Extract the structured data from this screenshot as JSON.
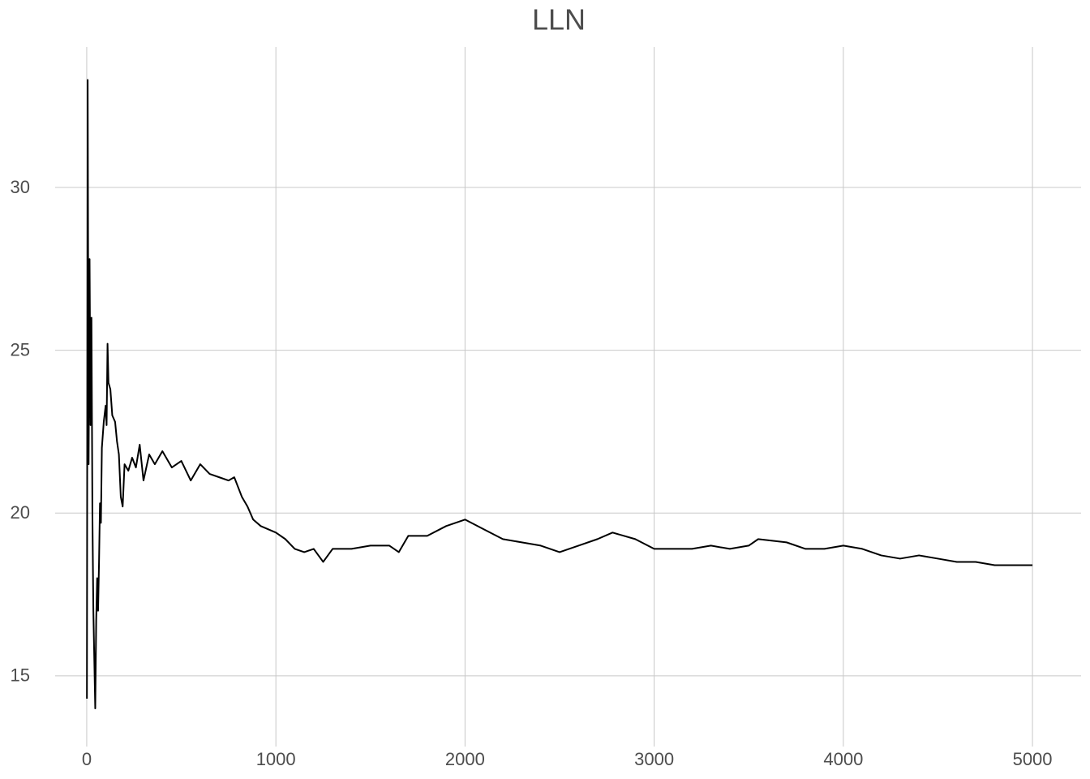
{
  "chart_data": {
    "type": "line",
    "title": "LLN",
    "x": [
      1,
      5,
      10,
      15,
      20,
      25,
      30,
      35,
      40,
      45,
      50,
      55,
      60,
      65,
      70,
      75,
      80,
      90,
      100,
      105,
      110,
      115,
      125,
      135,
      150,
      160,
      170,
      180,
      190,
      200,
      220,
      240,
      260,
      280,
      300,
      330,
      360,
      400,
      450,
      500,
      550,
      600,
      650,
      700,
      750,
      780,
      820,
      850,
      880,
      920,
      960,
      1000,
      1050,
      1100,
      1150,
      1200,
      1250,
      1300,
      1400,
      1500,
      1600,
      1650,
      1700,
      1800,
      1900,
      2000,
      2100,
      2200,
      2300,
      2400,
      2500,
      2600,
      2700,
      2780,
      2900,
      3000,
      3100,
      3200,
      3300,
      3400,
      3500,
      3550,
      3700,
      3800,
      3900,
      4000,
      4100,
      4200,
      4300,
      4400,
      4500,
      4600,
      4700,
      4800,
      4900,
      5000
    ],
    "values": [
      14.3,
      33.3,
      21.5,
      27.8,
      22.7,
      26.0,
      20.0,
      17.0,
      15.5,
      14.0,
      16.7,
      18.0,
      17.0,
      18.5,
      20.3,
      19.7,
      22.0,
      22.8,
      23.3,
      22.7,
      25.2,
      24.0,
      23.8,
      23.0,
      22.8,
      22.2,
      21.8,
      20.5,
      20.2,
      21.5,
      21.3,
      21.7,
      21.4,
      22.1,
      21.0,
      21.8,
      21.5,
      21.9,
      21.4,
      21.6,
      21.0,
      21.5,
      21.2,
      21.1,
      21.0,
      21.1,
      20.5,
      20.2,
      19.8,
      19.6,
      19.5,
      19.4,
      19.2,
      18.9,
      18.8,
      18.9,
      18.5,
      18.9,
      18.9,
      19.0,
      19.0,
      18.8,
      19.3,
      19.3,
      19.6,
      19.8,
      19.5,
      19.2,
      19.1,
      19.0,
      18.8,
      19.0,
      19.2,
      19.4,
      19.2,
      18.9,
      18.9,
      18.9,
      19.0,
      18.9,
      19.0,
      19.2,
      19.1,
      18.9,
      18.9,
      19.0,
      18.9,
      18.7,
      18.6,
      18.7,
      18.6,
      18.5,
      18.5,
      18.4,
      18.4,
      18.4
    ],
    "color": "#000000",
    "xlim": [
      -167,
      5257
    ],
    "ylim": [
      12.83,
      34.31
    ],
    "xticks": [
      0,
      1000,
      2000,
      3000,
      4000,
      5000
    ],
    "yticks": [
      15,
      20,
      25,
      30
    ],
    "grid": true
  }
}
